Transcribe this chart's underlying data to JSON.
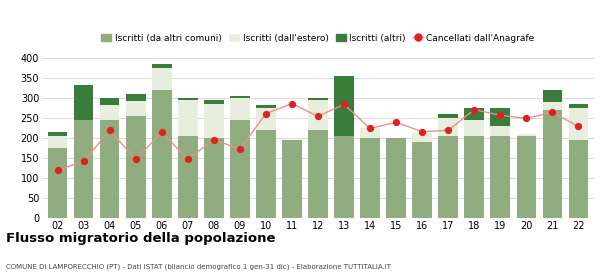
{
  "years": [
    "02",
    "03",
    "04",
    "05",
    "06",
    "07",
    "08",
    "09",
    "10",
    "11",
    "12",
    "13",
    "14",
    "15",
    "16",
    "17",
    "18",
    "19",
    "20",
    "21",
    "22"
  ],
  "iscritti_altri_comuni": [
    175,
    245,
    245,
    255,
    320,
    205,
    200,
    245,
    220,
    195,
    220,
    205,
    200,
    202,
    192,
    205,
    205,
    205,
    205,
    270,
    195
  ],
  "iscritti_estero": [
    30,
    0,
    38,
    38,
    55,
    90,
    87,
    55,
    55,
    0,
    75,
    0,
    27,
    0,
    22,
    47,
    42,
    25,
    5,
    20,
    82
  ],
  "iscritti_altri": [
    10,
    88,
    18,
    18,
    12,
    5,
    8,
    5,
    8,
    0,
    5,
    150,
    0,
    0,
    0,
    8,
    30,
    47,
    2,
    30,
    10
  ],
  "cancellati": [
    120,
    143,
    220,
    148,
    215,
    148,
    197,
    173,
    262,
    287,
    255,
    285,
    225,
    240,
    217,
    220,
    272,
    258,
    250,
    265,
    230
  ],
  "color_iscritti_comuni": "#8fad7f",
  "color_iscritti_estero": "#e8eedd",
  "color_iscritti_altri": "#3a7d3a",
  "color_cancellati": "#dd2222",
  "color_cancellati_line": "#e89090",
  "bg_color": "#ffffff",
  "grid_color": "#cccccc",
  "ylim": [
    0,
    420
  ],
  "yticks": [
    0,
    50,
    100,
    150,
    200,
    250,
    300,
    350,
    400
  ],
  "title": "Flusso migratorio della popolazione",
  "subtitle": "COMUNE DI LAMPORECCHIO (PT) - Dati ISTAT (bilancio demografico 1 gen-31 dic) - Elaborazione TUTTITALIA.IT",
  "legend_labels": [
    "Iscritti (da altri comuni)",
    "Iscritti (dall'estero)",
    "Iscritti (altri)",
    "Cancellati dall'Anagrafe"
  ]
}
